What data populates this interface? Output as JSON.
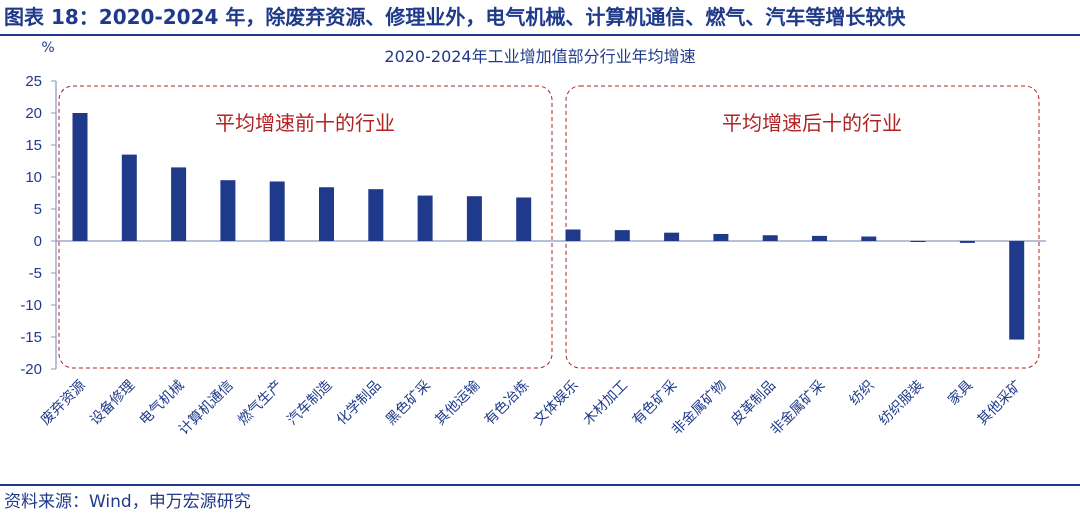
{
  "figure_title": "图表 18：2020-2024 年，除废弃资源、修理业外，电气机械、计算机通信、燃气、汽车等增长较快",
  "source": "资料来源：Wind，申万宏源研究",
  "chart_data": {
    "type": "bar",
    "title": "2020-2024年工业增加值部分行业年均增速",
    "ylabel": "%",
    "xlabel": "",
    "ylim": [
      -20,
      25
    ],
    "yticks": [
      25,
      20,
      15,
      10,
      5,
      0,
      -5,
      -10,
      -15,
      -20
    ],
    "grid": false,
    "bar_color": "#1f3a8a",
    "categories": [
      "废弃资源",
      "设备修理",
      "电气机械",
      "计算机通信",
      "燃气生产",
      "汽车制造",
      "化学制品",
      "黑色矿采",
      "其他运输",
      "有色冶炼",
      "文体娱乐",
      "木材加工",
      "有色矿采",
      "非金属矿物",
      "皮革制品",
      "非金属矿采",
      "纺织",
      "纺织服装",
      "家具",
      "其他采矿"
    ],
    "values": [
      20.0,
      13.5,
      11.5,
      9.5,
      9.3,
      8.4,
      8.1,
      7.1,
      7.0,
      6.8,
      1.8,
      1.7,
      1.3,
      1.1,
      0.9,
      0.8,
      0.7,
      -0.1,
      -0.3,
      -15.4
    ],
    "annotations": [
      {
        "label": "平均增速前十的行业",
        "box_color": "#b22222"
      },
      {
        "label": "平均增速后十的行业",
        "box_color": "#b22222"
      }
    ]
  }
}
